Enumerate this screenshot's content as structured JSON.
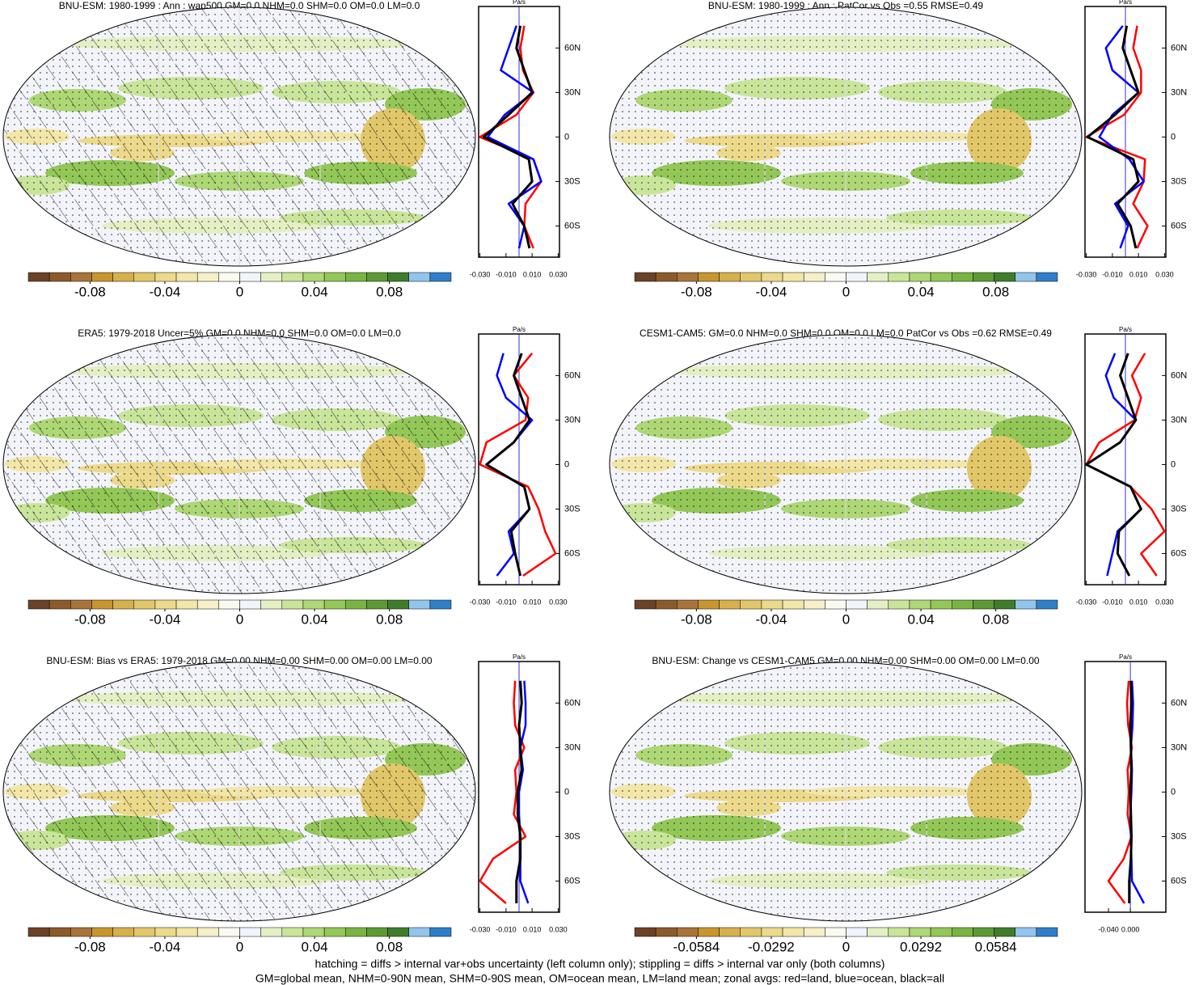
{
  "chart_data": [
    {
      "type": "map",
      "title": "BNU-ESM: 1980-1999 : Ann : wap500 GM=0.0 NHM=0.0 SHM=0.0 OM=0.0 LM=0.0",
      "hatching": true,
      "stippling": true,
      "colorbar": {
        "clim": [
          -0.113,
          0.113
        ],
        "ticks": [
          -0.08,
          -0.04,
          0,
          0.04,
          0.08
        ],
        "colors": [
          "#6b4226",
          "#8c5a2b",
          "#a8743a",
          "#c8962e",
          "#d6b04c",
          "#e2c76a",
          "#ecd98a",
          "#f2e6a8",
          "#f6efc8",
          "#fbfaf0",
          "#f2f4fb",
          "#e4f0c4",
          "#c9e59a",
          "#aed775",
          "#93c757",
          "#79b443",
          "#5d9a35",
          "#3f7d2c",
          "#92c5ec",
          "#2f7fc8"
        ]
      },
      "profile": {
        "unit": "Pa/s",
        "xlim": [
          -0.031,
          0.031
        ],
        "xticks": [
          {
            "value": -0.03,
            "label": "-0.030"
          },
          {
            "value": -0.01,
            "label": "-0.010"
          },
          {
            "value": 0.01,
            "label": "0.010"
          },
          {
            "value": 0.03,
            "label": "0.030"
          }
        ],
        "ylim": [
          -81,
          88
        ],
        "yticks": [
          {
            "value": -60,
            "label": "60S"
          },
          {
            "value": -30,
            "label": "30S"
          },
          0,
          {
            "value": 30,
            "label": "30N"
          },
          {
            "value": 60,
            "label": "60N"
          }
        ],
        "y": [
          -75,
          -60,
          -45,
          -30,
          -15,
          0,
          15,
          30,
          45,
          60,
          75
        ],
        "series": [
          {
            "color": "#ff0000",
            "values": [
              0.011,
              0.004,
              0.005,
              0.017,
              0.011,
              -0.03,
              -0.002,
              0.011,
              0.003,
              0.001,
              0.004
            ]
          },
          {
            "color": "#0000ff",
            "values": [
              0.0,
              0.004,
              -0.008,
              0.017,
              0.011,
              -0.024,
              -0.011,
              0.011,
              -0.014,
              -0.008,
              -0.002
            ]
          },
          {
            "color": "#000000",
            "values": [
              0.008,
              0.004,
              -0.005,
              0.01,
              0.0075,
              -0.027,
              -0.008,
              0.01,
              0.004,
              -0.002,
              0.001
            ]
          }
        ]
      }
    },
    {
      "type": "map",
      "title": "BNU-ESM: 1980-1999 : Ann : PatCor vs Obs =0.55 RMSE=0.49",
      "hatching": false,
      "stippling": true,
      "colorbar": {
        "clim": [
          -0.113,
          0.113
        ],
        "ticks": [
          -0.08,
          -0.04,
          0,
          0.04,
          0.08
        ],
        "colors": [
          "#6b4226",
          "#8c5a2b",
          "#a8743a",
          "#c8962e",
          "#d6b04c",
          "#e2c76a",
          "#ecd98a",
          "#f2e6a8",
          "#f6efc8",
          "#fbfaf0",
          "#f2f4fb",
          "#e4f0c4",
          "#c9e59a",
          "#aed775",
          "#93c757",
          "#79b443",
          "#5d9a35",
          "#3f7d2c",
          "#92c5ec",
          "#2f7fc8"
        ]
      },
      "profile": {
        "unit": "Pa/s",
        "xlim": [
          -0.031,
          0.031
        ],
        "xticks": [
          {
            "value": -0.03,
            "label": "-0.030"
          },
          {
            "value": -0.01,
            "label": "-0.010"
          },
          {
            "value": 0.01,
            "label": "0.010"
          },
          {
            "value": 0.03,
            "label": "0.030"
          }
        ],
        "ylim": [
          -81,
          88
        ],
        "yticks": [
          {
            "value": -60,
            "label": "60S"
          },
          {
            "value": -30,
            "label": "30S"
          },
          0,
          {
            "value": 30,
            "label": "30N"
          },
          {
            "value": 60,
            "label": "60N"
          }
        ],
        "y": [
          -75,
          -60,
          -45,
          -30,
          -15,
          0,
          15,
          30,
          45,
          60,
          75
        ],
        "series": [
          {
            "color": "#ff0000",
            "values": [
              0.009,
              0.017,
              0.006,
              0.014,
              0.015,
              -0.03,
              -0.001,
              0.012,
              0.012,
              0.006,
              0.009
            ]
          },
          {
            "color": "#0000ff",
            "values": [
              -0.004,
              0.002,
              -0.008,
              0.014,
              0.003,
              -0.02,
              -0.01,
              0.01,
              -0.01,
              -0.015,
              -0.002
            ]
          },
          {
            "color": "#000000",
            "values": [
              0.008,
              0.004,
              -0.006,
              0.01,
              0.006,
              -0.029,
              -0.008,
              0.01,
              0.004,
              -0.002,
              0.001
            ]
          }
        ]
      }
    },
    {
      "type": "map",
      "title": "ERA5: 1979-2018 Uncer=5% GM=0.0 NHM=0.0 SHM=0.0 OM=0.0 LM=0.0",
      "hatching": true,
      "stippling": true,
      "colorbar": {
        "clim": [
          -0.113,
          0.113
        ],
        "ticks": [
          -0.08,
          -0.04,
          0,
          0.04,
          0.08
        ],
        "colors": [
          "#6b4226",
          "#8c5a2b",
          "#a8743a",
          "#c8962e",
          "#d6b04c",
          "#e2c76a",
          "#ecd98a",
          "#f2e6a8",
          "#f6efc8",
          "#fbfaf0",
          "#f2f4fb",
          "#e4f0c4",
          "#c9e59a",
          "#aed775",
          "#93c757",
          "#79b443",
          "#5d9a35",
          "#3f7d2c",
          "#92c5ec",
          "#2f7fc8"
        ]
      },
      "profile": {
        "unit": "Pa/s",
        "xlim": [
          -0.031,
          0.031
        ],
        "xticks": [
          {
            "value": -0.03,
            "label": "-0.030"
          },
          {
            "value": -0.01,
            "label": "-0.010"
          },
          {
            "value": 0.01,
            "label": "0.010"
          },
          {
            "value": 0.03,
            "label": "0.030"
          }
        ],
        "ylim": [
          -81,
          88
        ],
        "yticks": [
          {
            "value": -60,
            "label": "60S"
          },
          {
            "value": -30,
            "label": "30S"
          },
          0,
          {
            "value": 30,
            "label": "30N"
          },
          {
            "value": 60,
            "label": "60N"
          }
        ],
        "y": [
          -75,
          -60,
          -45,
          -30,
          -15,
          0,
          15,
          30,
          45,
          60,
          75
        ],
        "series": [
          {
            "color": "#ff0000",
            "values": [
              0.003,
              0.028,
              0.02,
              0.015,
              0.007,
              -0.03,
              -0.025,
              0.005,
              0.007,
              -0.004,
              0.01
            ]
          },
          {
            "color": "#0000ff",
            "values": [
              -0.017,
              -0.004,
              -0.008,
              0.008,
              0.004,
              -0.025,
              -0.004,
              0.01,
              -0.01,
              -0.017,
              -0.012
            ]
          },
          {
            "color": "#000000",
            "values": [
              0.001,
              -0.003,
              -0.006,
              0.008,
              0.004,
              -0.025,
              -0.004,
              0.008,
              0.002,
              -0.004,
              0.002
            ]
          }
        ]
      }
    },
    {
      "type": "map",
      "title": "CESM1-CAM5: GM=0.0 NHM=0.0 SHM=0.0 OM=0.0 LM=0.0 PatCor vs Obs =0.62 RMSE=0.49",
      "hatching": false,
      "stippling": true,
      "colorbar": {
        "clim": [
          -0.113,
          0.113
        ],
        "ticks": [
          -0.08,
          -0.04,
          0,
          0.04,
          0.08
        ],
        "colors": [
          "#6b4226",
          "#8c5a2b",
          "#a8743a",
          "#c8962e",
          "#d6b04c",
          "#e2c76a",
          "#ecd98a",
          "#f2e6a8",
          "#f6efc8",
          "#fbfaf0",
          "#f2f4fb",
          "#e4f0c4",
          "#c9e59a",
          "#aed775",
          "#93c757",
          "#79b443",
          "#5d9a35",
          "#3f7d2c",
          "#92c5ec",
          "#2f7fc8"
        ]
      },
      "profile": {
        "unit": "Pa/s",
        "xlim": [
          -0.031,
          0.031
        ],
        "xticks": [
          {
            "value": -0.03,
            "label": "-0.030"
          },
          {
            "value": -0.01,
            "label": "-0.010"
          },
          {
            "value": 0.01,
            "label": "0.010"
          },
          {
            "value": 0.03,
            "label": "0.030"
          }
        ],
        "ylim": [
          -81,
          88
        ],
        "yticks": [
          {
            "value": -60,
            "label": "60S"
          },
          {
            "value": -30,
            "label": "30S"
          },
          0,
          {
            "value": 30,
            "label": "30N"
          },
          {
            "value": 60,
            "label": "60N"
          }
        ],
        "y": [
          -75,
          -60,
          -45,
          -30,
          -15,
          0,
          15,
          30,
          45,
          60,
          75
        ],
        "series": [
          {
            "color": "#ff0000",
            "values": [
              0.024,
              0.012,
              0.03,
              0.02,
              0.004,
              -0.03,
              -0.02,
              0.007,
              0.012,
              0.005,
              0.015
            ]
          },
          {
            "color": "#0000ff",
            "values": [
              -0.014,
              -0.01,
              -0.006,
              0.012,
              0.004,
              -0.03,
              -0.004,
              0.008,
              -0.009,
              -0.015,
              -0.008
            ]
          },
          {
            "color": "#000000",
            "values": [
              0.003,
              -0.006,
              -0.005,
              0.012,
              0.004,
              -0.03,
              -0.004,
              0.008,
              0.002,
              -0.004,
              0.002
            ]
          }
        ]
      }
    },
    {
      "type": "map",
      "title": "BNU-ESM: Bias vs ERA5: 1979-2018 GM=0.00 NHM=0.00 SHM=0.00 OM=0.00 LM=0.00",
      "hatching": true,
      "stippling": true,
      "colorbar": {
        "clim": [
          -0.113,
          0.113
        ],
        "ticks": [
          -0.08,
          -0.04,
          0,
          0.04,
          0.08
        ],
        "colors": [
          "#6b4226",
          "#8c5a2b",
          "#a8743a",
          "#c8962e",
          "#d6b04c",
          "#e2c76a",
          "#ecd98a",
          "#f2e6a8",
          "#f6efc8",
          "#fbfaf0",
          "#f2f4fb",
          "#e4f0c4",
          "#c9e59a",
          "#aed775",
          "#93c757",
          "#79b443",
          "#5d9a35",
          "#3f7d2c",
          "#92c5ec",
          "#2f7fc8"
        ]
      },
      "profile": {
        "unit": "Pa/s",
        "xlim": [
          -0.031,
          0.031
        ],
        "xticks": [
          {
            "value": -0.03,
            "label": "-0.030"
          },
          {
            "value": -0.01,
            "label": "-0.010"
          },
          {
            "value": 0.01,
            "label": "0.010"
          },
          {
            "value": 0.03,
            "label": "0.030"
          }
        ],
        "ylim": [
          -81,
          88
        ],
        "yticks": [
          {
            "value": -60,
            "label": "60S"
          },
          {
            "value": -30,
            "label": "30S"
          },
          0,
          {
            "value": 30,
            "label": "30N"
          },
          {
            "value": 60,
            "label": "60N"
          }
        ],
        "y": [
          -75,
          -60,
          -45,
          -30,
          -15,
          0,
          15,
          30,
          45,
          60,
          75
        ],
        "series": [
          {
            "color": "#ff0000",
            "values": [
              -0.01,
              -0.03,
              -0.02,
              0.005,
              -0.004,
              -0.002,
              -0.003,
              0.004,
              -0.003,
              -0.004,
              -0.003
            ]
          },
          {
            "color": "#0000ff",
            "values": [
              0.007,
              0.001,
              0.001,
              0.001,
              0.0,
              0.0,
              0.003,
              0.001,
              0.005,
              0.005,
              0.004
            ]
          },
          {
            "color": "#000000",
            "values": [
              -0.002,
              -0.002,
              0.001,
              0.001,
              -0.001,
              -0.001,
              0.002,
              0.001,
              0.0,
              0.002,
              0.001
            ]
          }
        ]
      }
    },
    {
      "type": "map",
      "title": "BNU-ESM: Change vs CESM1-CAM5 GM=0.00 NHM=0.00 SHM=0.00 OM=0.00 LM=0.00",
      "hatching": false,
      "stippling": true,
      "colorbar": {
        "clim": [
          -0.0825,
          0.0825
        ],
        "ticks": [
          -0.0584,
          -0.0292,
          0,
          0.0292,
          0.0584
        ],
        "colors": [
          "#6b4226",
          "#8c5a2b",
          "#a8743a",
          "#c8962e",
          "#d6b04c",
          "#e2c76a",
          "#ecd98a",
          "#f2e6a8",
          "#f6efc8",
          "#fbfaf0",
          "#f2f4fb",
          "#e4f0c4",
          "#c9e59a",
          "#aed775",
          "#93c757",
          "#79b443",
          "#5d9a35",
          "#3f7d2c",
          "#92c5ec",
          "#2f7fc8"
        ]
      },
      "profile": {
        "unit": "Pa/s",
        "xlim": [
          -0.083,
          0.065
        ],
        "xticks": [
          {
            "value": -0.04,
            "label": "-0.040"
          },
          {
            "value": 0,
            "label": "0.000"
          }
        ],
        "ylim": [
          -81,
          88
        ],
        "yticks": [
          {
            "value": -60,
            "label": "60S"
          },
          {
            "value": -30,
            "label": "30S"
          },
          0,
          {
            "value": 30,
            "label": "30N"
          },
          {
            "value": 60,
            "label": "60N"
          }
        ],
        "y": [
          -75,
          -60,
          -45,
          -30,
          -15,
          0,
          15,
          30,
          45,
          60,
          75
        ],
        "series": [
          {
            "color": "#ff0000",
            "values": [
              -0.01,
              -0.04,
              -0.012,
              0.002,
              -0.005,
              -0.003,
              -0.005,
              0.003,
              -0.004,
              -0.006,
              -0.003
            ]
          },
          {
            "color": "#0000ff",
            "values": [
              0.025,
              0.003,
              0.002,
              0.001,
              0.0,
              0.002,
              0.003,
              0.001,
              0.004,
              0.005,
              0.003
            ]
          },
          {
            "color": "#000000",
            "values": [
              -0.002,
              -0.002,
              0.001,
              0.002,
              0.001,
              0.0,
              0.002,
              0.001,
              0.0,
              0.002,
              0.001
            ]
          }
        ]
      }
    }
  ],
  "footer": [
    "hatching = diffs > internal var+obs uncertainty (left column only); stippling = diffs > internal var only (both columns)",
    "GM=global mean, NHM=0-90N mean, SHM=0-90S mean, OM=ocean mean, LM=land mean; zonal avgs: red=land, blue=ocean, black=all"
  ]
}
